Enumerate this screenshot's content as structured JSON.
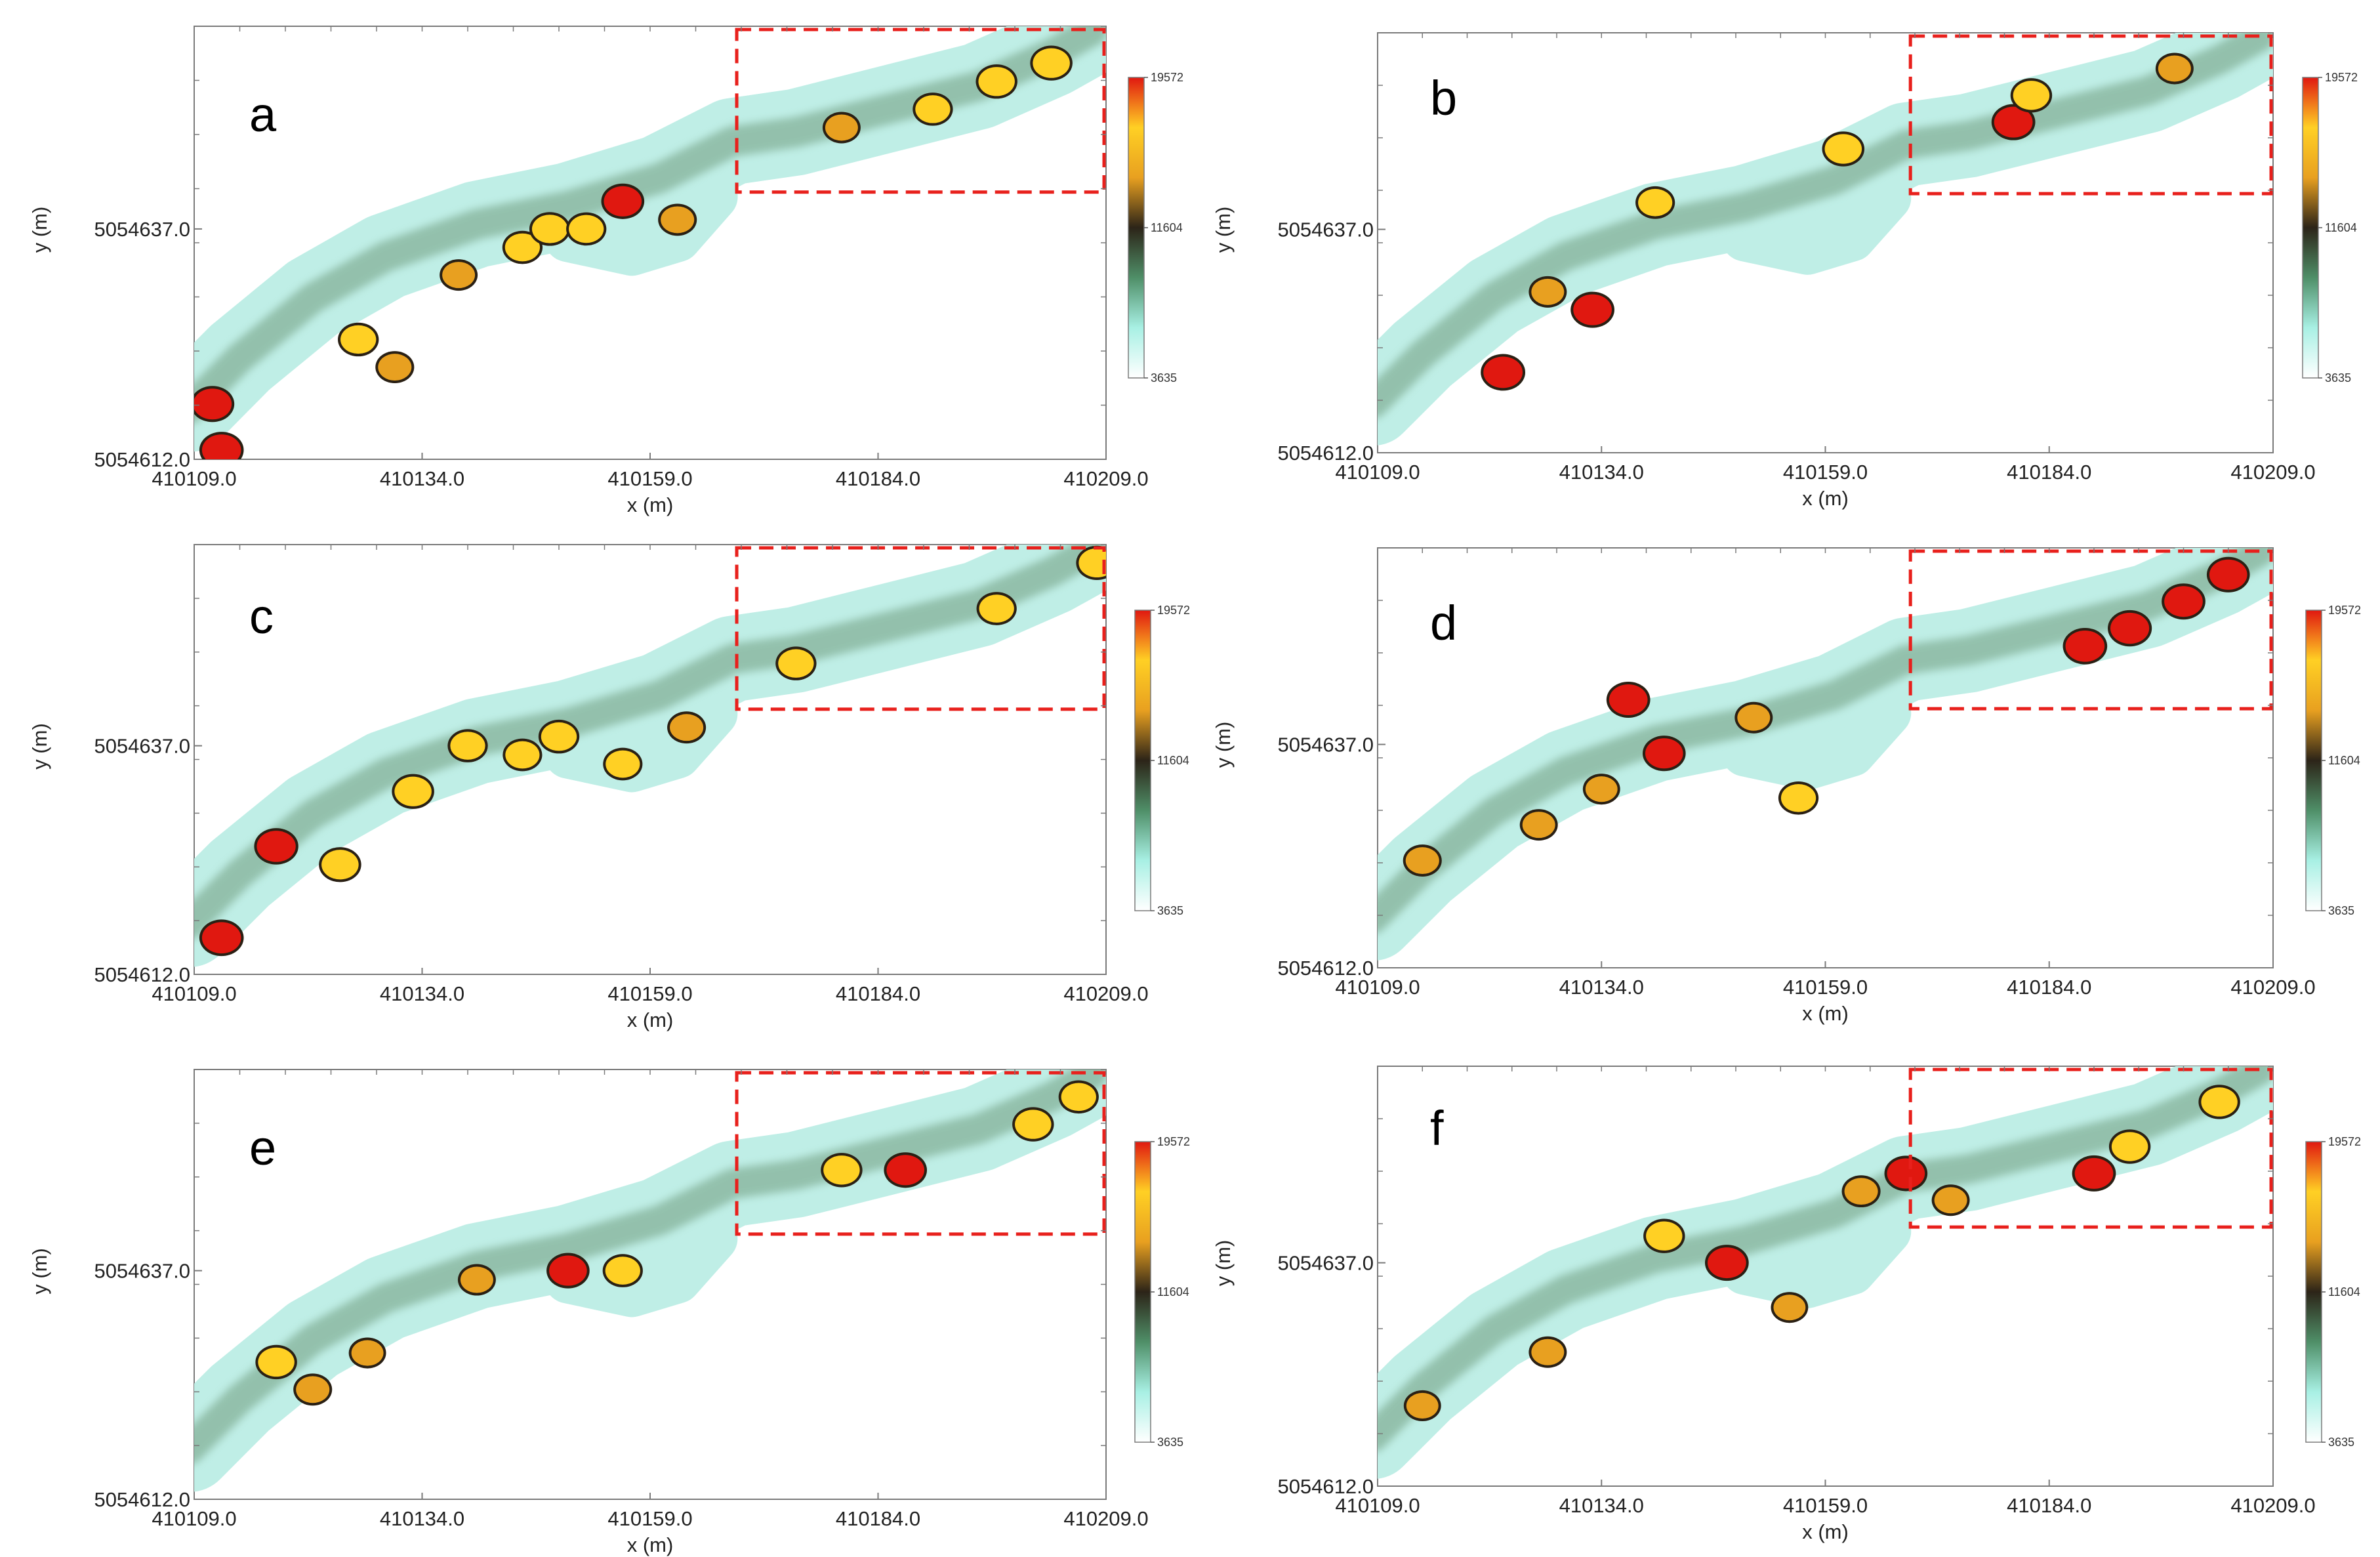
{
  "chart_data": {
    "type": "heatmap",
    "title": "",
    "xlabel": "x (m)",
    "ylabel": "y (m)",
    "xlim": [
      410109.0,
      410209.0
    ],
    "ylim": [
      5054612.0,
      5054659.0
    ],
    "x_ticks": [
      "410109.0",
      "410134.0",
      "410159.0",
      "410184.0",
      "410209.0"
    ],
    "y_ticks": [
      "5054612.0",
      "5054637.0"
    ],
    "colorbar": {
      "min": 3635,
      "mid": 11604,
      "max": 19572,
      "labels": [
        "19572",
        "11604",
        "3635"
      ],
      "colors": [
        "#ffffff",
        "#a8f0e4",
        "#4f8f68",
        "#2c2418",
        "#e8a020",
        "#ffd024",
        "#e01810"
      ]
    },
    "highlight_box": {
      "x": [
        410168.5,
        410209.0
      ],
      "y": [
        5054641.0,
        5054660.0
      ],
      "color": "#e8201c"
    },
    "panels": [
      {
        "label": "a",
        "hotspots": [
          {
            "x": 410111,
            "y": 5054618,
            "v": 19000
          },
          {
            "x": 410112,
            "y": 5054613,
            "v": 19400
          },
          {
            "x": 410127,
            "y": 5054625,
            "v": 17000
          },
          {
            "x": 410131,
            "y": 5054622,
            "v": 15500
          },
          {
            "x": 410138,
            "y": 5054632,
            "v": 15000
          },
          {
            "x": 410145,
            "y": 5054635,
            "v": 16500
          },
          {
            "x": 410148,
            "y": 5054637,
            "v": 17000
          },
          {
            "x": 410152,
            "y": 5054637,
            "v": 16500
          },
          {
            "x": 410156,
            "y": 5054640,
            "v": 18500
          },
          {
            "x": 410162,
            "y": 5054638,
            "v": 15500
          },
          {
            "x": 410180,
            "y": 5054648,
            "v": 15000
          },
          {
            "x": 410190,
            "y": 5054650,
            "v": 16500
          },
          {
            "x": 410197,
            "y": 5054653,
            "v": 17500
          },
          {
            "x": 410203,
            "y": 5054655,
            "v": 18000
          }
        ]
      },
      {
        "label": "b",
        "hotspots": [
          {
            "x": 410123,
            "y": 5054621,
            "v": 19500
          },
          {
            "x": 410133,
            "y": 5054628,
            "v": 19000
          },
          {
            "x": 410128,
            "y": 5054630,
            "v": 15000
          },
          {
            "x": 410140,
            "y": 5054640,
            "v": 16000
          },
          {
            "x": 410161,
            "y": 5054646,
            "v": 18000
          },
          {
            "x": 410180,
            "y": 5054649,
            "v": 19000
          },
          {
            "x": 410182,
            "y": 5054652,
            "v": 17500
          },
          {
            "x": 410198,
            "y": 5054655,
            "v": 15000
          }
        ]
      },
      {
        "label": "c",
        "hotspots": [
          {
            "x": 410112,
            "y": 5054616,
            "v": 19400
          },
          {
            "x": 410118,
            "y": 5054626,
            "v": 19300
          },
          {
            "x": 410125,
            "y": 5054624,
            "v": 18000
          },
          {
            "x": 410133,
            "y": 5054632,
            "v": 18000
          },
          {
            "x": 410139,
            "y": 5054637,
            "v": 16500
          },
          {
            "x": 410145,
            "y": 5054636,
            "v": 16000
          },
          {
            "x": 410149,
            "y": 5054638,
            "v": 17000
          },
          {
            "x": 410156,
            "y": 5054635,
            "v": 16000
          },
          {
            "x": 410163,
            "y": 5054639,
            "v": 15500
          },
          {
            "x": 410175,
            "y": 5054646,
            "v": 17000
          },
          {
            "x": 410197,
            "y": 5054652,
            "v": 16500
          },
          {
            "x": 410208,
            "y": 5054657,
            "v": 17500
          }
        ]
      },
      {
        "label": "d",
        "hotspots": [
          {
            "x": 410114,
            "y": 5054624,
            "v": 15500
          },
          {
            "x": 410127,
            "y": 5054628,
            "v": 15000
          },
          {
            "x": 410134,
            "y": 5054632,
            "v": 14500
          },
          {
            "x": 410141,
            "y": 5054636,
            "v": 18500
          },
          {
            "x": 410137,
            "y": 5054642,
            "v": 19000
          },
          {
            "x": 410151,
            "y": 5054640,
            "v": 15000
          },
          {
            "x": 410156,
            "y": 5054631,
            "v": 16500
          },
          {
            "x": 410188,
            "y": 5054648,
            "v": 19400
          },
          {
            "x": 410193,
            "y": 5054650,
            "v": 19200
          },
          {
            "x": 410199,
            "y": 5054653,
            "v": 19000
          },
          {
            "x": 410204,
            "y": 5054656,
            "v": 18500
          }
        ]
      },
      {
        "label": "e",
        "hotspots": [
          {
            "x": 410118,
            "y": 5054627,
            "v": 17500
          },
          {
            "x": 410122,
            "y": 5054624,
            "v": 15500
          },
          {
            "x": 410128,
            "y": 5054628,
            "v": 14500
          },
          {
            "x": 410140,
            "y": 5054636,
            "v": 15000
          },
          {
            "x": 410150,
            "y": 5054637,
            "v": 18500
          },
          {
            "x": 410156,
            "y": 5054637,
            "v": 16500
          },
          {
            "x": 410180,
            "y": 5054648,
            "v": 17500
          },
          {
            "x": 410187,
            "y": 5054648,
            "v": 18500
          },
          {
            "x": 410201,
            "y": 5054653,
            "v": 17500
          },
          {
            "x": 410206,
            "y": 5054656,
            "v": 16500
          }
        ]
      },
      {
        "label": "f",
        "hotspots": [
          {
            "x": 410114,
            "y": 5054621,
            "v": 14500
          },
          {
            "x": 410128,
            "y": 5054627,
            "v": 15000
          },
          {
            "x": 410141,
            "y": 5054640,
            "v": 17500
          },
          {
            "x": 410148,
            "y": 5054637,
            "v": 19000
          },
          {
            "x": 410155,
            "y": 5054632,
            "v": 14500
          },
          {
            "x": 410163,
            "y": 5054645,
            "v": 15500
          },
          {
            "x": 410168,
            "y": 5054647,
            "v": 18500
          },
          {
            "x": 410173,
            "y": 5054644,
            "v": 15000
          },
          {
            "x": 410189,
            "y": 5054647,
            "v": 19000
          },
          {
            "x": 410193,
            "y": 5054650,
            "v": 17500
          },
          {
            "x": 410203,
            "y": 5054655,
            "v": 17500
          }
        ]
      }
    ]
  }
}
